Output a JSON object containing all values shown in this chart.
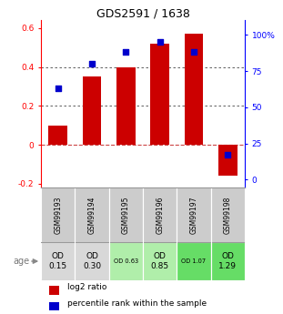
{
  "title": "GDS2591 / 1638",
  "samples": [
    "GSM99193",
    "GSM99194",
    "GSM99195",
    "GSM99196",
    "GSM99197",
    "GSM99198"
  ],
  "log2_ratio": [
    0.1,
    0.35,
    0.4,
    0.52,
    0.57,
    -0.16
  ],
  "percentile_rank": [
    63,
    80,
    88,
    95,
    88,
    17
  ],
  "bar_color": "#cc0000",
  "dot_color": "#0000cc",
  "ylim_left": [
    -0.22,
    0.64
  ],
  "ylim_right": [
    -5.5,
    110
  ],
  "yticks_left": [
    -0.2,
    0.0,
    0.2,
    0.4,
    0.6
  ],
  "yticks_right": [
    0,
    25,
    50,
    75,
    100
  ],
  "ytick_labels_left": [
    "-0.2",
    "0",
    "0.2",
    "0.4",
    "0.6"
  ],
  "ytick_labels_right": [
    "0",
    "25",
    "50",
    "75",
    "100%"
  ],
  "hlines": [
    0.2,
    0.4
  ],
  "zero_line_color": "#cc4444",
  "hline_color": "#444444",
  "age_labels": [
    "OD\n0.15",
    "OD\n0.30",
    "OD 0.63",
    "OD\n0.85",
    "OD 1.07",
    "OD\n1.29"
  ],
  "age_bg_colors": [
    "#d8d8d8",
    "#d8d8d8",
    "#b0eeaa",
    "#b0eeaa",
    "#66dd66",
    "#66dd66"
  ],
  "age_fontsize_large": [
    true,
    true,
    false,
    true,
    false,
    true
  ],
  "sample_bg_color": "#cccccc",
  "legend_log2": "log2 ratio",
  "legend_pct": "percentile rank within the sample",
  "bar_width": 0.55
}
